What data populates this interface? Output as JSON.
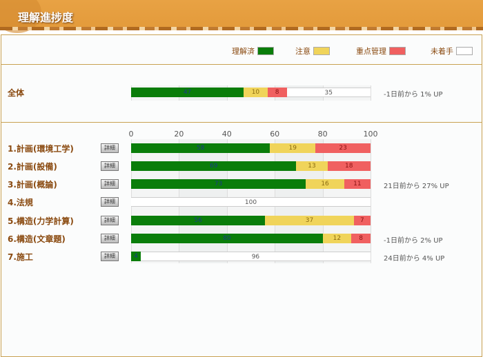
{
  "header": {
    "title": "理解進捗度"
  },
  "legend": [
    {
      "label": "理解済",
      "color": "#0a7d0a"
    },
    {
      "label": "注意",
      "color": "#f0d45a"
    },
    {
      "label": "重点管理",
      "color": "#f06060"
    },
    {
      "label": "未着手",
      "color": "#ffffff"
    }
  ],
  "detail_label": "詳細",
  "chart_data": {
    "type": "bar",
    "stacked": true,
    "orientation": "horizontal",
    "xlim": [
      0,
      100
    ],
    "ticks": [
      "0",
      "20",
      "40",
      "60",
      "80",
      "100"
    ],
    "series_names": [
      "理解済",
      "注意",
      "重点管理",
      "未着手"
    ],
    "overall": {
      "label": "全体",
      "values": [
        47,
        10,
        8,
        35
      ],
      "note": "-1日前から 1% UP"
    },
    "rows": [
      {
        "label": "1.計画(環境工学)",
        "values": [
          58,
          19,
          23,
          0
        ],
        "note": ""
      },
      {
        "label": "2.計画(設備)",
        "values": [
          69,
          13,
          18,
          0
        ],
        "note": ""
      },
      {
        "label": "3.計画(概論)",
        "values": [
          73,
          16,
          11,
          0
        ],
        "note": "21日前から 27% UP"
      },
      {
        "label": "4.法規",
        "values": [
          0,
          0,
          0,
          100
        ],
        "note": ""
      },
      {
        "label": "5.構造(力学計算)",
        "values": [
          56,
          37,
          7,
          0
        ],
        "note": ""
      },
      {
        "label": "6.構造(文章題)",
        "values": [
          80,
          12,
          8,
          0
        ],
        "note": "-1日前から 2% UP"
      },
      {
        "label": "7.施工",
        "values": [
          4,
          0,
          0,
          96
        ],
        "note": "24日前から 4% UP"
      }
    ]
  }
}
